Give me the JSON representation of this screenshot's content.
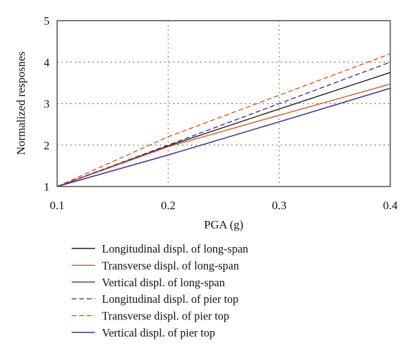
{
  "chart_data": {
    "type": "line",
    "title": "",
    "xlabel": "PGA (g)",
    "ylabel": "Normalized resposnes",
    "xlim": [
      0.1,
      0.4
    ],
    "ylim": [
      1,
      5
    ],
    "x_ticks": [
      "0.1",
      "0.2",
      "0.3",
      "0.4"
    ],
    "y_ticks": [
      "1",
      "2",
      "3",
      "4",
      "5"
    ],
    "grid": "dotted",
    "legend_position": "below",
    "x": [
      0.1,
      0.2,
      0.3,
      0.4
    ],
    "series": [
      {
        "name": "Longitudinal displ. of long-span",
        "color": "#1a1a1a",
        "dash": "solid",
        "values": [
          1.0,
          1.98,
          2.87,
          3.75
        ]
      },
      {
        "name": "Transverse displ. of long-span",
        "color": "#d9541e",
        "dash": "solid",
        "values": [
          1.0,
          1.96,
          2.72,
          3.47
        ]
      },
      {
        "name": "Vertical displ. of long-span",
        "color": "#3b2f96",
        "dash": "solid",
        "values": [
          1.0,
          1.76,
          2.56,
          3.37
        ]
      },
      {
        "name": "Longitudinal displ. of pier top",
        "color": "#3b2f96",
        "dash": "dashed",
        "values": [
          1.0,
          2.0,
          3.0,
          4.0
        ]
      },
      {
        "name": "Transverse displ. of pier top",
        "color": "#d9541e",
        "dash": "dashed",
        "values": [
          1.0,
          2.2,
          3.2,
          4.2
        ]
      },
      {
        "name": "Vertical displ. of pier top",
        "color": "#3b2f96",
        "dash": "solid",
        "values": [
          1.0,
          1.76,
          2.56,
          3.37
        ]
      }
    ]
  }
}
